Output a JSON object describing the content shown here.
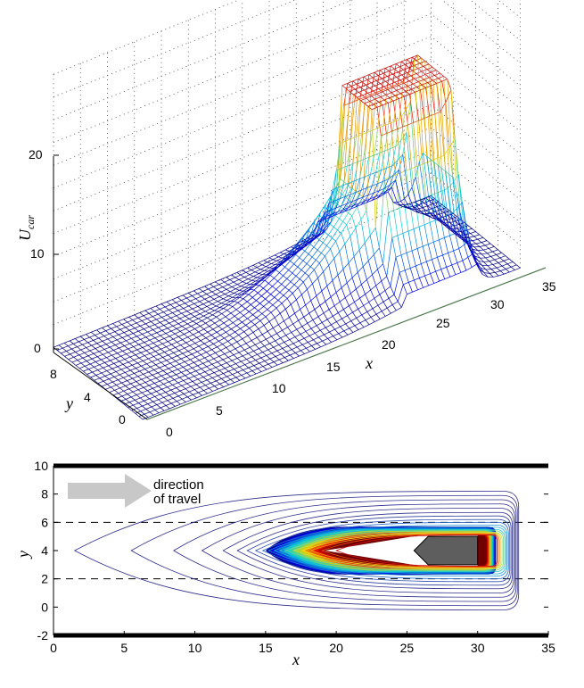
{
  "chart_data": [
    {
      "type": "surface",
      "title": "",
      "xlabel": "x",
      "ylabel": "y",
      "zlabel": "U",
      "zlabel_sub": "car",
      "x_ticks": [
        "0",
        "5",
        "10",
        "15",
        "20",
        "25",
        "30",
        "35"
      ],
      "y_ticks": [
        "0",
        "4",
        "8"
      ],
      "z_ticks": [
        "0",
        "10",
        "20"
      ],
      "xlim": [
        0,
        35
      ],
      "ylim": [
        0,
        8
      ],
      "zlim": [
        0,
        20
      ],
      "grid": true,
      "colormap": "jet",
      "surface_description_points": [
        {
          "x": 0,
          "y": 4,
          "z": 0
        },
        {
          "x": 15,
          "y": 4,
          "z": 0.5
        },
        {
          "x": 18,
          "y": 4,
          "z": 4
        },
        {
          "x": 22,
          "y": 4,
          "z": 10
        },
        {
          "x": 24,
          "y": 4,
          "z": 20
        },
        {
          "x": 30,
          "y": 4,
          "z": 20
        },
        {
          "x": 32,
          "y": 4,
          "z": 0
        }
      ],
      "plateau": {
        "x": [
          24,
          30
        ],
        "y": [
          2.5,
          5.5
        ],
        "z": 20
      }
    },
    {
      "type": "contour",
      "title": "",
      "xlabel": "x",
      "ylabel": "y",
      "x_ticks": [
        "0",
        "5",
        "10",
        "15",
        "20",
        "25",
        "30",
        "35"
      ],
      "y_ticks": [
        "-2",
        "0",
        "2",
        "4",
        "6",
        "8",
        "10"
      ],
      "xlim": [
        0,
        35
      ],
      "ylim": [
        -2,
        10
      ],
      "lane_boundaries": [
        -2,
        10
      ],
      "lane_markings": [
        2,
        6
      ],
      "annotation": [
        "direction",
        "of travel"
      ],
      "car": {
        "x_rear": 26.5,
        "x_front": 30,
        "y_low": 3,
        "y_high": 5,
        "color": "#5e5e5e"
      },
      "contour_front_x": 31.3,
      "contour_tips_x": [
        1.5,
        5.5,
        8.5,
        10.5,
        12,
        13,
        13.7,
        14.3,
        14.8,
        15.2,
        15.6,
        16,
        16.4,
        17,
        17.6,
        18.2,
        19,
        20
      ],
      "contour_halfwidths": [
        4.2,
        3.9,
        3.6,
        3.3,
        3.0,
        2.7,
        2.45,
        2.2,
        2.0,
        1.8,
        1.65,
        1.5,
        1.4,
        1.3,
        1.25,
        1.2,
        1.15,
        1.1
      ],
      "contour_colors": [
        "#2f2f8c",
        "#2f2f8c",
        "#2f2f8c",
        "#2f2f8c",
        "#2f2f8c",
        "#2f2f8c",
        "#3040a0",
        "#3050b0",
        "#2a6cc8",
        "#1f90dd",
        "#18b0e0",
        "#30c8c0",
        "#70d890",
        "#b8e050",
        "#f0e020",
        "#f8a010",
        "#f05010",
        "#c81010"
      ]
    }
  ]
}
